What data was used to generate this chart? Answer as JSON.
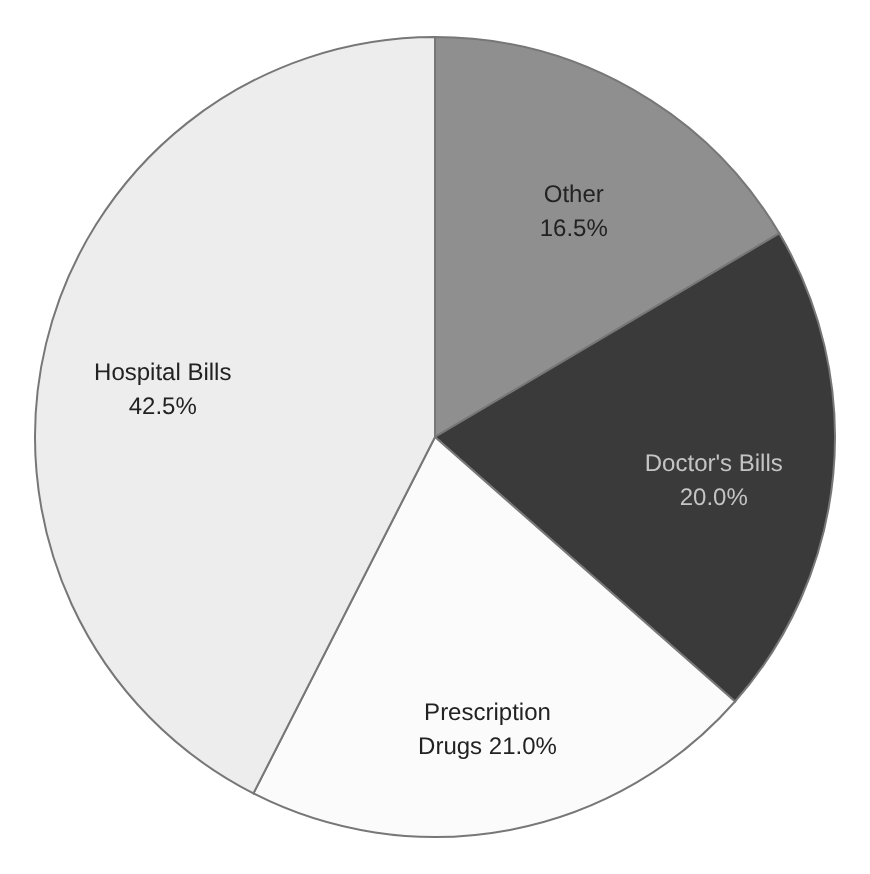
{
  "chart_data": {
    "type": "pie",
    "categories": [
      "Other",
      "Doctor's Bills",
      "Prescription Drugs",
      "Hospital Bills"
    ],
    "values": [
      16.5,
      20.0,
      21.0,
      42.5
    ],
    "value_labels": [
      "16.5%",
      "20.0%",
      "21.0%",
      "42.5%"
    ],
    "colors": [
      "#8f8f8f",
      "#3a3a3a",
      "#fbfbfb",
      "#ededed"
    ]
  }
}
